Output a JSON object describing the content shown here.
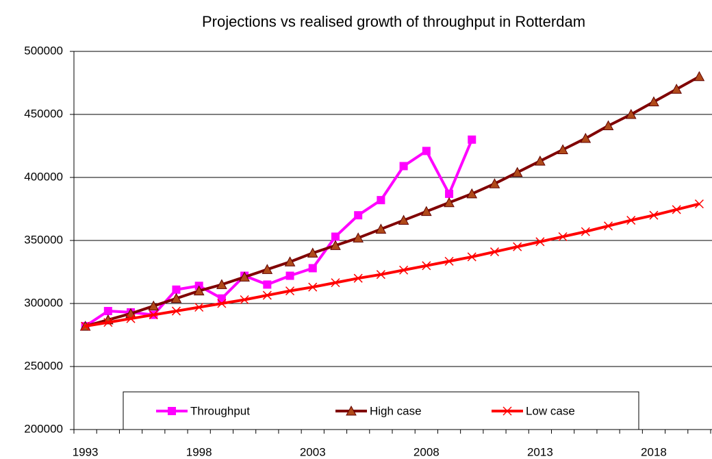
{
  "chart_data": {
    "type": "line",
    "title": "Projections vs realised growth of throughput in Rotterdam",
    "categories": [
      "1993",
      null,
      null,
      null,
      null,
      "1998",
      null,
      null,
      null,
      null,
      "2003",
      null,
      null,
      null,
      null,
      "2008",
      null,
      null,
      null,
      null,
      "2013",
      null,
      null,
      null,
      null,
      "2018",
      null,
      null
    ],
    "series": [
      {
        "name": "Throughput",
        "color": "#ff00ff",
        "marker": "square",
        "values": [
          282000,
          294000,
          293000,
          291000,
          311000,
          314000,
          304000,
          322000,
          315000,
          322000,
          328000,
          353000,
          370000,
          382000,
          409000,
          421000,
          387000,
          430000,
          null,
          null,
          null,
          null,
          null,
          null,
          null,
          null,
          null,
          null
        ]
      },
      {
        "name": "High case",
        "color": "#800000",
        "marker": "triangle",
        "values": [
          282000,
          287000,
          292000,
          298000,
          304000,
          310000,
          315000,
          321000,
          327000,
          333000,
          340000,
          346000,
          352000,
          359000,
          366000,
          373000,
          380000,
          387000,
          395000,
          404000,
          413000,
          422000,
          431000,
          441000,
          450000,
          460000,
          470000,
          480000
        ]
      },
      {
        "name": "Low case",
        "color": "#ff0000",
        "marker": "x",
        "values": [
          282000,
          285000,
          288000,
          291000,
          294000,
          297000,
          300000,
          303000,
          306500,
          310000,
          313000,
          316500,
          320000,
          323000,
          326500,
          330000,
          333500,
          337000,
          341000,
          345000,
          349000,
          353000,
          357000,
          361500,
          366000,
          370000,
          374500,
          379000
        ]
      }
    ],
    "ylim": [
      200000,
      500000
    ],
    "yticks": [
      200000,
      250000,
      300000,
      350000,
      400000,
      450000,
      500000
    ],
    "grid": true,
    "legend": "bottom"
  }
}
